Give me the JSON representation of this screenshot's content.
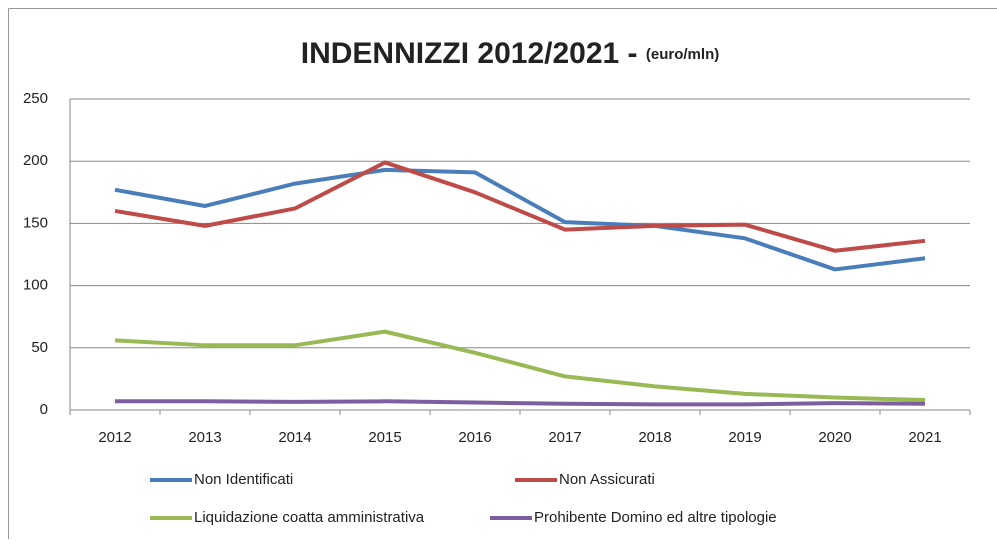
{
  "chart_data": {
    "type": "line",
    "title": "INDENNIZZI 2012/2021 - ",
    "subtitle": "(euro/mln)",
    "categories": [
      "2012",
      "2013",
      "2014",
      "2015",
      "2016",
      "2017",
      "2018",
      "2019",
      "2020",
      "2021"
    ],
    "series": [
      {
        "name": "Non Identificati",
        "color": "#4a7ebb",
        "values": [
          177,
          164,
          182,
          193,
          191,
          151,
          148,
          138,
          113,
          122
        ]
      },
      {
        "name": "Non Assicurati",
        "color": "#be4b48",
        "values": [
          160,
          148,
          162,
          199,
          175,
          145,
          148,
          149,
          128,
          136
        ]
      },
      {
        "name": "Liquidazione coatta amministrativa",
        "color": "#98b954",
        "values": [
          56,
          52,
          52,
          63,
          46,
          27,
          19,
          13,
          10,
          8
        ]
      },
      {
        "name": "Prohibente Domino ed altre tipologie",
        "color": "#7d5fa0",
        "values": [
          7,
          7,
          6.5,
          7,
          6,
          5,
          4.5,
          4.5,
          5.5,
          5
        ]
      }
    ],
    "ylim": [
      0,
      250
    ],
    "yticks": [
      0,
      50,
      100,
      150,
      200,
      250
    ],
    "grid": true,
    "legend": "bottom"
  }
}
